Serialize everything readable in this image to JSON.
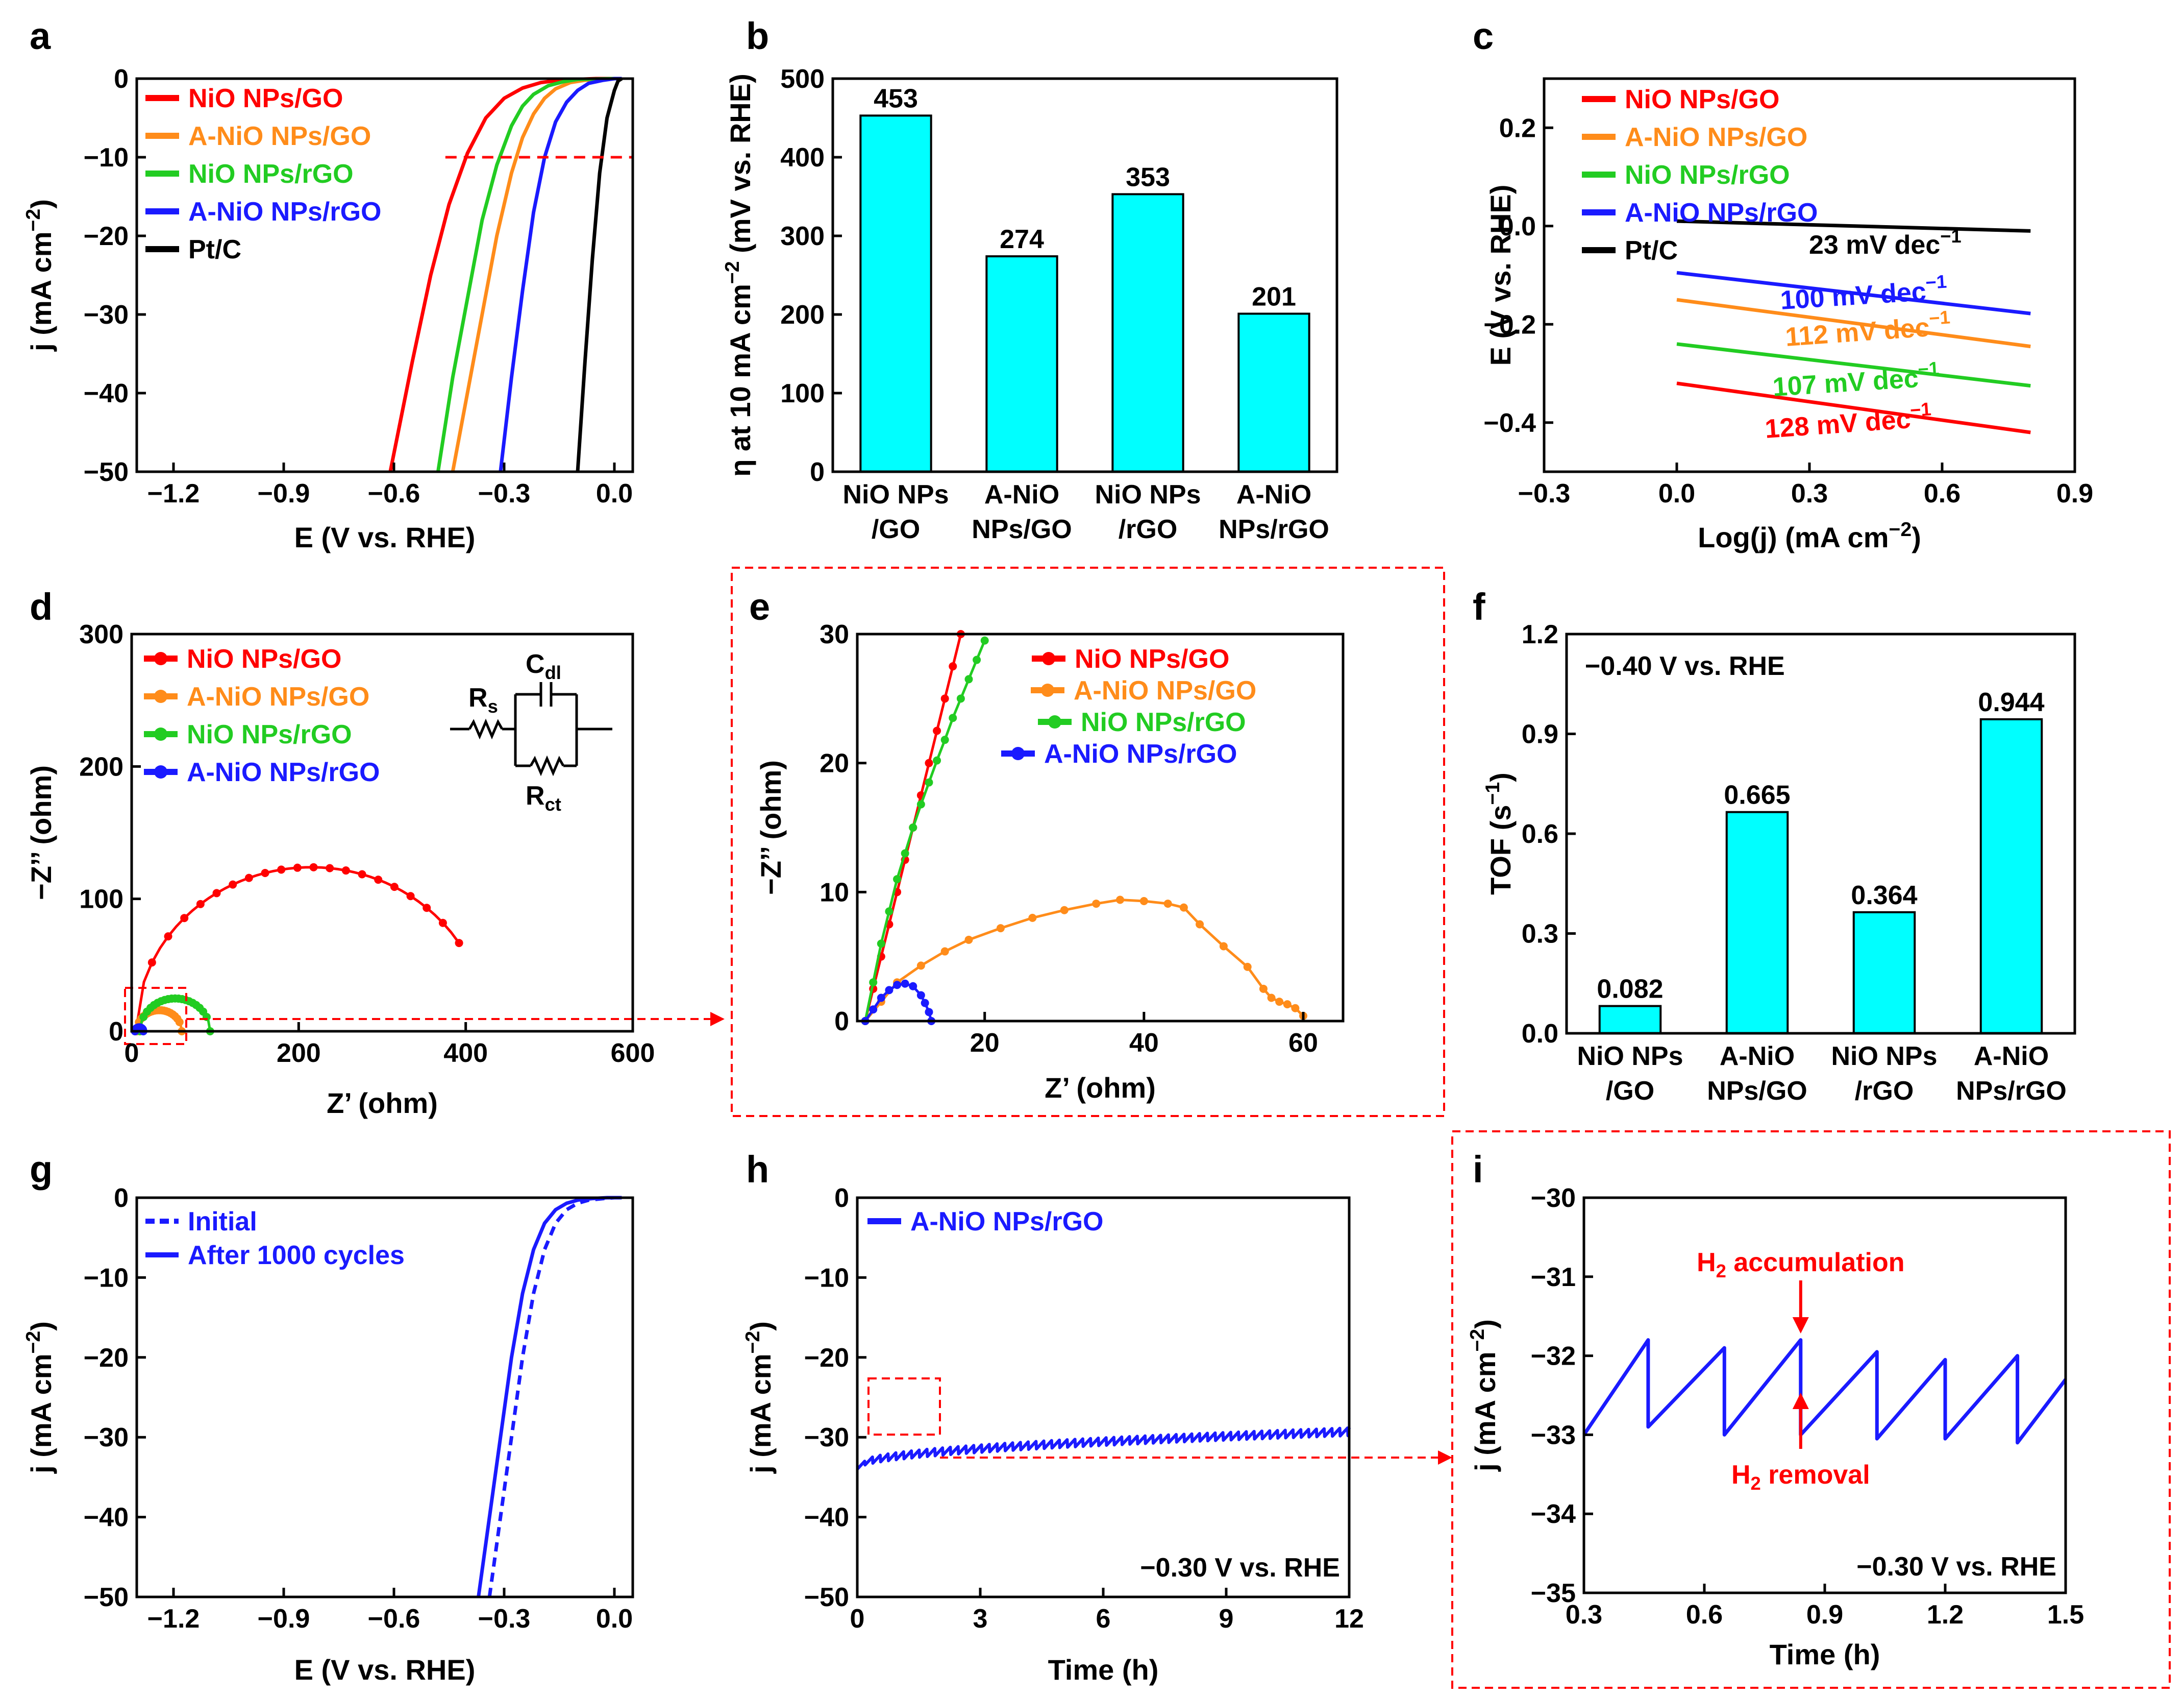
{
  "figure_letters": [
    "a",
    "b",
    "c",
    "d",
    "e",
    "f",
    "g",
    "h",
    "i"
  ],
  "chart_data": [
    {
      "panel": "a",
      "type": "line",
      "xlabel": "E (V vs. RHE)",
      "ylabel_html": [
        "j (mA cm",
        "−2",
        ")"
      ],
      "xlim": [
        -1.3,
        0.05
      ],
      "ylim": [
        -50,
        0
      ],
      "xticks": [
        -1.2,
        -0.9,
        -0.6,
        -0.3,
        0.0
      ],
      "xtick_labels": [
        "−1.2",
        "−0.9",
        "−0.6",
        "−0.3",
        "0.0"
      ],
      "yticks": [
        0,
        -10,
        -20,
        -30,
        -40,
        -50
      ],
      "ytick_labels": [
        "0",
        "−10",
        "−20",
        "−30",
        "−40",
        "−50"
      ],
      "ref_line_y": -10,
      "series": [
        {
          "name": "NiO NPs/GO",
          "color": "#ff0000",
          "x": [
            -0.61,
            -0.55,
            -0.5,
            -0.45,
            -0.4,
            -0.35,
            -0.3,
            -0.25,
            -0.2,
            -0.15,
            -0.1,
            -0.05,
            0.0,
            0.02
          ],
          "y": [
            -50,
            -36,
            -25,
            -16,
            -9.5,
            -5,
            -2.5,
            -1.2,
            -0.5,
            -0.2,
            -0.1,
            0,
            0,
            0
          ]
        },
        {
          "name": "A-NiO NPs/GO",
          "color": "#ff8c1a",
          "x": [
            -0.44,
            -0.4,
            -0.36,
            -0.32,
            -0.28,
            -0.25,
            -0.22,
            -0.19,
            -0.16,
            -0.12,
            -0.08,
            0.0,
            0.02
          ],
          "y": [
            -50,
            -40,
            -30,
            -20,
            -12,
            -7.5,
            -4.5,
            -2.5,
            -1.3,
            -0.5,
            -0.2,
            0,
            0
          ]
        },
        {
          "name": "NiO NPs/rGO",
          "color": "#22cc22",
          "x": [
            -0.48,
            -0.44,
            -0.4,
            -0.36,
            -0.32,
            -0.28,
            -0.25,
            -0.22,
            -0.18,
            -0.14,
            -0.1,
            0.0,
            0.02
          ],
          "y": [
            -50,
            -38,
            -28,
            -18,
            -11,
            -6,
            -3.5,
            -2,
            -0.9,
            -0.4,
            -0.1,
            0,
            0
          ]
        },
        {
          "name": "A-NiO NPs/rGO",
          "color": "#1a1aff",
          "x": [
            -0.31,
            -0.28,
            -0.25,
            -0.22,
            -0.19,
            -0.16,
            -0.13,
            -0.1,
            -0.07,
            -0.03,
            0.0,
            0.02
          ],
          "y": [
            -50,
            -38,
            -27,
            -17,
            -10,
            -5.5,
            -3,
            -1.5,
            -0.6,
            -0.2,
            0,
            0
          ]
        },
        {
          "name": "Pt/C",
          "color": "#000000",
          "x": [
            -0.1,
            -0.08,
            -0.06,
            -0.04,
            -0.02,
            0.0,
            0.01,
            0.02
          ],
          "y": [
            -50,
            -36,
            -23,
            -12,
            -5,
            -1.5,
            -0.3,
            0
          ]
        }
      ]
    },
    {
      "panel": "b",
      "type": "bar",
      "ylabel_html": [
        "η at 10 mA cm",
        "−2",
        " (mV vs. RHE)"
      ],
      "ylim": [
        0,
        500
      ],
      "yticks": [
        0,
        100,
        200,
        300,
        400,
        500
      ],
      "ytick_labels": [
        "0",
        "100",
        "200",
        "300",
        "400",
        "500"
      ],
      "categories_line1": [
        "NiO NPs",
        "A-NiO",
        "NiO NPs",
        "A-NiO"
      ],
      "categories_line2": [
        "/GO",
        "NPs/GO",
        "/rGO",
        "NPs/rGO"
      ],
      "values": [
        453,
        274,
        353,
        201
      ],
      "value_labels": [
        "453",
        "274",
        "353",
        "201"
      ],
      "bar_color": "#00ffff"
    },
    {
      "panel": "c",
      "type": "line",
      "xlabel_html": [
        "Log(j) (mA cm",
        "−2",
        ")"
      ],
      "ylabel": "E (V vs. RHE)",
      "xlim": [
        -0.3,
        0.9
      ],
      "ylim": [
        -0.5,
        0.3
      ],
      "xticks": [
        -0.3,
        0.0,
        0.3,
        0.6,
        0.9
      ],
      "xtick_labels": [
        "−0.3",
        "0.0",
        "0.3",
        "0.6",
        "0.9"
      ],
      "yticks": [
        0.2,
        0.0,
        -0.2,
        -0.4
      ],
      "ytick_labels": [
        "0.2",
        "0.0",
        "−0.2",
        "−0.4"
      ],
      "series": [
        {
          "name": "NiO NPs/GO",
          "color": "#ff0000",
          "x": [
            0.0,
            0.8
          ],
          "y": [
            -0.32,
            -0.42
          ],
          "slope_prefix": "128 mV dec",
          "slope_sup": "−1"
        },
        {
          "name": "A-NiO NPs/GO",
          "color": "#ff8c1a",
          "x": [
            0.0,
            0.8
          ],
          "y": [
            -0.15,
            -0.245
          ],
          "slope_prefix": "112 mV dec",
          "slope_sup": "−1"
        },
        {
          "name": "NiO NPs/rGO",
          "color": "#22cc22",
          "x": [
            0.0,
            0.8
          ],
          "y": [
            -0.24,
            -0.325
          ],
          "slope_prefix": "107 mV dec",
          "slope_sup": "−1"
        },
        {
          "name": "A-NiO NPs/rGO",
          "color": "#1a1aff",
          "x": [
            0.0,
            0.8
          ],
          "y": [
            -0.095,
            -0.178
          ],
          "slope_prefix": "100 mV dec",
          "slope_sup": "−1"
        },
        {
          "name": "Pt/C",
          "color": "#000000",
          "x": [
            0.0,
            0.8
          ],
          "y": [
            0.01,
            -0.01
          ],
          "slope_prefix": "23 mV dec",
          "slope_sup": "−1"
        }
      ]
    },
    {
      "panel": "d",
      "type": "scatter-line",
      "xlabel": "Z’ (ohm)",
      "ylabel": "−Z’’ (ohm)",
      "xlim": [
        0,
        600
      ],
      "ylim": [
        0,
        300
      ],
      "xticks": [
        0,
        200,
        400,
        600
      ],
      "xtick_labels": [
        "0",
        "200",
        "400",
        "600"
      ],
      "yticks": [
        0,
        100,
        200,
        300
      ],
      "ytick_labels": [
        "0",
        "100",
        "200",
        "300"
      ],
      "circuit_labels": {
        "rs_main": "R",
        "rs_sub": "s",
        "cdl_main": "C",
        "cdl_sub": "dl",
        "rct_main": "R",
        "rct_sub": "ct"
      },
      "series": [
        {
          "name": "NiO NPs/GO",
          "color": "#ff0000",
          "center": 215,
          "radius": 210,
          "end_x": 392
        },
        {
          "name": "A-NiO NPs/GO",
          "color": "#ff8c1a",
          "center": 33,
          "radius": 27,
          "end_x": 60
        },
        {
          "name": "NiO NPs/rGO",
          "color": "#22cc22",
          "center": 52,
          "radius": 42,
          "end_x": 94
        },
        {
          "name": "A-NiO NPs/rGO",
          "color": "#1a1aff",
          "center": 9,
          "radius": 5,
          "end_x": 14
        }
      ]
    },
    {
      "panel": "e",
      "type": "scatter-line",
      "xlabel": "Z’ (ohm)",
      "ylabel": "−Z’’ (ohm)",
      "xlim": [
        4,
        65
      ],
      "ylim": [
        0,
        30
      ],
      "xticks": [
        20,
        40,
        60
      ],
      "xtick_labels": [
        "20",
        "40",
        "60"
      ],
      "yticks": [
        0,
        10,
        20,
        30
      ],
      "ytick_labels": [
        "0",
        "10",
        "20",
        "30"
      ],
      "series": [
        {
          "name": "NiO NPs/GO",
          "color": "#ff0000",
          "x": [
            5,
            6,
            7,
            8,
            9,
            10,
            11,
            12,
            13,
            14,
            15,
            16,
            17
          ],
          "y": [
            0,
            2.5,
            5,
            7.5,
            10,
            12.5,
            15,
            17.5,
            20,
            22.5,
            25,
            27.5,
            30
          ]
        },
        {
          "name": "A-NiO NPs/GO",
          "color": "#ff8c1a",
          "x": [
            5,
            7,
            9,
            12,
            15,
            18,
            22,
            26,
            30,
            34,
            37,
            40,
            43,
            45,
            47,
            50,
            53,
            55,
            56,
            57,
            58,
            59,
            60
          ],
          "y": [
            0,
            1.5,
            3,
            4.3,
            5.4,
            6.3,
            7.2,
            8,
            8.6,
            9.1,
            9.4,
            9.3,
            9.1,
            8.8,
            7.5,
            5.8,
            4.2,
            2.5,
            1.8,
            1.5,
            1.3,
            1.0,
            0.4
          ]
        },
        {
          "name": "NiO NPs/rGO",
          "color": "#22cc22",
          "x": [
            5,
            6,
            7,
            8,
            9,
            10,
            11,
            12,
            13,
            14,
            15,
            16,
            17,
            18,
            19,
            20
          ],
          "y": [
            0,
            3,
            6,
            8.5,
            11,
            13,
            15,
            16.8,
            18.5,
            20.2,
            21.8,
            23.5,
            25,
            26.5,
            28,
            29.5
          ]
        },
        {
          "name": "A-NiO NPs/rGO",
          "color": "#1a1aff",
          "x": [
            5,
            6,
            7,
            8,
            9,
            10,
            11,
            12,
            12.5,
            13,
            13.3
          ],
          "y": [
            0,
            0.9,
            1.8,
            2.4,
            2.8,
            2.9,
            2.7,
            2.0,
            1.4,
            0.7,
            0
          ]
        }
      ]
    },
    {
      "panel": "f",
      "type": "bar",
      "ylabel_html": [
        "TOF (s",
        "−1",
        ")"
      ],
      "annotation": "−0.40 V vs. RHE",
      "ylim": [
        0,
        1.2
      ],
      "yticks": [
        0,
        0.3,
        0.6,
        0.9,
        1.2
      ],
      "ytick_labels": [
        "0.0",
        "0.3",
        "0.6",
        "0.9",
        "1.2"
      ],
      "categories_line1": [
        "NiO NPs",
        "A-NiO",
        "NiO NPs",
        "A-NiO"
      ],
      "categories_line2": [
        "/GO",
        "NPs/GO",
        "/rGO",
        "NPs/rGO"
      ],
      "values": [
        0.082,
        0.665,
        0.364,
        0.944
      ],
      "value_labels": [
        "0.082",
        "0.665",
        "0.364",
        "0.944"
      ],
      "bar_color": "#00ffff"
    },
    {
      "panel": "g",
      "type": "line",
      "xlabel": "E (V vs. RHE)",
      "ylabel_html": [
        "j (mA cm",
        "−2",
        ")"
      ],
      "xlim": [
        -1.3,
        0.05
      ],
      "ylim": [
        -50,
        0
      ],
      "xticks": [
        -1.2,
        -0.9,
        -0.6,
        -0.3,
        0.0
      ],
      "xtick_labels": [
        "−1.2",
        "−0.9",
        "−0.6",
        "−0.3",
        "0.0"
      ],
      "yticks": [
        0,
        -10,
        -20,
        -30,
        -40,
        -50
      ],
      "ytick_labels": [
        "0",
        "−10",
        "−20",
        "−30",
        "−40",
        "−50"
      ],
      "series": [
        {
          "name": "Initial",
          "color": "#1a1aff",
          "dash": true,
          "x": [
            -0.34,
            -0.31,
            -0.28,
            -0.25,
            -0.22,
            -0.19,
            -0.16,
            -0.13,
            -0.1,
            -0.07,
            -0.03,
            0.0,
            0.02
          ],
          "y": [
            -50,
            -40,
            -30,
            -20,
            -12,
            -6.5,
            -3.2,
            -1.5,
            -0.7,
            -0.3,
            -0.1,
            0,
            0
          ]
        },
        {
          "name": "After 1000 cycles",
          "color": "#1a1aff",
          "dash": false,
          "x": [
            -0.37,
            -0.34,
            -0.31,
            -0.28,
            -0.25,
            -0.22,
            -0.19,
            -0.16,
            -0.13,
            -0.1,
            -0.06,
            -0.02,
            0.0,
            0.02
          ],
          "y": [
            -50,
            -40,
            -30,
            -20,
            -12,
            -6.5,
            -3.2,
            -1.5,
            -0.7,
            -0.3,
            -0.1,
            0,
            0,
            0
          ]
        }
      ]
    },
    {
      "panel": "h",
      "type": "line",
      "xlabel": "Time (h)",
      "ylabel_html": [
        "j (mA cm",
        "−2",
        ")"
      ],
      "annotation": "−0.30 V vs. RHE",
      "xlim": [
        0,
        12
      ],
      "ylim": [
        -50,
        0
      ],
      "xticks": [
        0,
        3,
        6,
        9,
        12
      ],
      "xtick_labels": [
        "0",
        "3",
        "6",
        "9",
        "12"
      ],
      "yticks": [
        0,
        -10,
        -20,
        -30,
        -40,
        -50
      ],
      "ytick_labels": [
        "0",
        "−10",
        "−20",
        "−30",
        "−40",
        "−50"
      ],
      "series": [
        {
          "name": "A-NiO NPs/rGO",
          "color": "#1a1aff",
          "start": -33.5,
          "end": -29.3,
          "sawtooth_period": 0.19,
          "sawtooth_amp": 1.0
        }
      ]
    },
    {
      "panel": "i",
      "type": "line",
      "xlabel": "Time (h)",
      "ylabel_html": [
        "j (mA cm",
        "−2",
        ")"
      ],
      "annotation": "−0.30 V vs. RHE",
      "xlim": [
        0.3,
        1.5
      ],
      "ylim": [
        -35,
        -30
      ],
      "xticks": [
        0.3,
        0.6,
        0.9,
        1.2,
        1.5
      ],
      "xtick_labels": [
        "0.3",
        "0.6",
        "0.9",
        "1.2",
        "1.5"
      ],
      "yticks": [
        -30,
        -31,
        -32,
        -33,
        -34,
        -35
      ],
      "ytick_labels": [
        "−30",
        "−31",
        "−32",
        "−33",
        "−34",
        "−35"
      ],
      "arrow_top": {
        "main": "H",
        "sub": "2",
        "rest": " accumulation"
      },
      "arrow_bottom": {
        "main": "H",
        "sub": "2",
        "rest": " removal"
      },
      "series": [
        {
          "name": "A-NiO NPs/rGO",
          "color": "#1a1aff",
          "x": [
            0.3,
            0.46,
            0.46,
            0.65,
            0.65,
            0.84,
            0.84,
            1.03,
            1.03,
            1.2,
            1.2,
            1.38,
            1.38,
            1.5
          ],
          "y": [
            -33.0,
            -31.8,
            -32.9,
            -31.9,
            -33.0,
            -31.8,
            -33.0,
            -31.95,
            -33.05,
            -32.05,
            -33.05,
            -32.0,
            -33.1,
            -32.3
          ]
        }
      ]
    }
  ]
}
